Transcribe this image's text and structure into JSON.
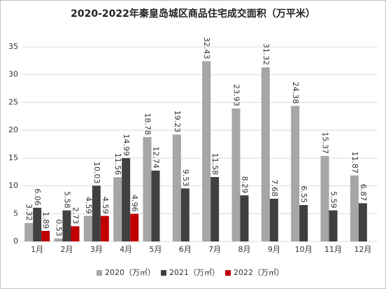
{
  "chart_data": {
    "type": "bar",
    "title": "2020-2022年秦皇岛城区商品住宅成交面积（万平米）",
    "categories": [
      "1月",
      "2月",
      "3月",
      "4月",
      "5月",
      "6月",
      "7月",
      "8月",
      "9月",
      "10月",
      "11月",
      "12月"
    ],
    "series": [
      {
        "name": "2020（万㎡）",
        "color": "#a6a6a6",
        "values": [
          3.32,
          0.53,
          4.59,
          11.56,
          18.78,
          19.23,
          32.43,
          23.93,
          31.32,
          24.38,
          15.37,
          11.87
        ]
      },
      {
        "name": "2021（万㎡）",
        "color": "#404040",
        "values": [
          6.06,
          5.58,
          10.03,
          14.99,
          12.74,
          9.53,
          11.58,
          8.29,
          7.68,
          6.55,
          5.59,
          6.87
        ]
      },
      {
        "name": "2022（万㎡）",
        "color": "#c00000",
        "values": [
          1.89,
          2.73,
          4.59,
          4.96,
          null,
          null,
          null,
          null,
          null,
          null,
          null,
          null
        ]
      }
    ],
    "ylim": [
      0,
      35
    ],
    "yticks": [
      0,
      5,
      10,
      15,
      20,
      25,
      30,
      35
    ],
    "grid": true,
    "legend": "bottom"
  }
}
